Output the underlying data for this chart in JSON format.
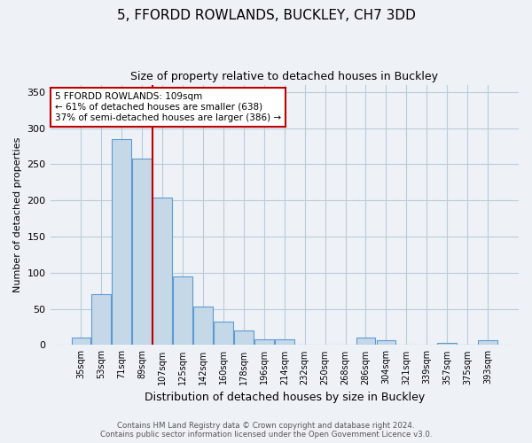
{
  "title": "5, FFORDD ROWLANDS, BUCKLEY, CH7 3DD",
  "subtitle": "Size of property relative to detached houses in Buckley",
  "xlabel": "Distribution of detached houses by size in Buckley",
  "ylabel": "Number of detached properties",
  "categories": [
    "35sqm",
    "53sqm",
    "71sqm",
    "89sqm",
    "107sqm",
    "125sqm",
    "142sqm",
    "160sqm",
    "178sqm",
    "196sqm",
    "214sqm",
    "232sqm",
    "250sqm",
    "268sqm",
    "286sqm",
    "304sqm",
    "321sqm",
    "339sqm",
    "357sqm",
    "375sqm",
    "393sqm"
  ],
  "values": [
    10,
    70,
    285,
    258,
    204,
    95,
    53,
    32,
    20,
    8,
    8,
    0,
    0,
    0,
    10,
    7,
    0,
    0,
    3,
    0,
    7
  ],
  "bar_color": "#c5d8e8",
  "bar_edge_color": "#5b9bd5",
  "highlight_index": 4,
  "highlight_color": "#c00000",
  "annotation_text": "5 FFORDD ROWLANDS: 109sqm\n← 61% of detached houses are smaller (638)\n37% of semi-detached houses are larger (386) →",
  "annotation_box_color": "white",
  "annotation_box_edge_color": "#c00000",
  "ylim": [
    0,
    360
  ],
  "yticks": [
    0,
    50,
    100,
    150,
    200,
    250,
    300,
    350
  ],
  "footer": "Contains HM Land Registry data © Crown copyright and database right 2024.\nContains public sector information licensed under the Open Government Licence v3.0.",
  "bg_color": "#eef2f7",
  "plot_bg_color": "#eef2f7",
  "grid_color": "#b8ccd8"
}
